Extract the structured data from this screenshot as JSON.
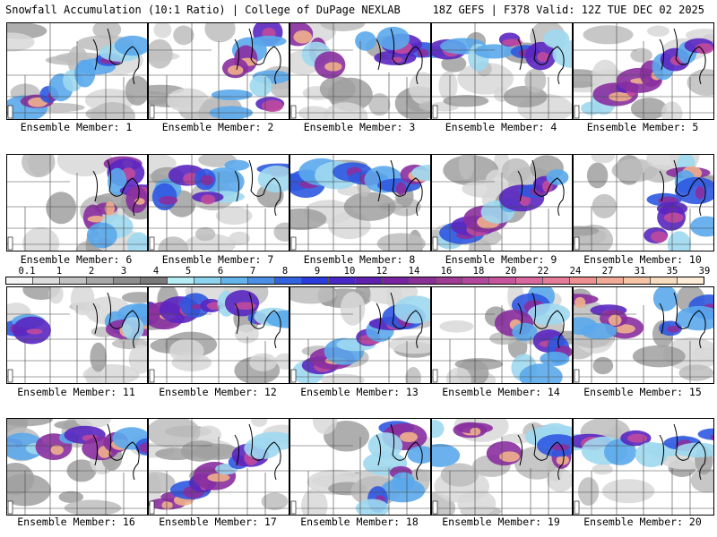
{
  "header": {
    "left": "Snowfall Accumulation (10:1 Ratio) | College of DuPage NEXLAB",
    "right": "18Z GEFS | F378 Valid: 12Z TUE DEC 02 2025"
  },
  "colorbar": {
    "labels": [
      "0.1",
      "1",
      "2",
      "3",
      "4",
      "5",
      "6",
      "7",
      "8",
      "9",
      "10",
      "12",
      "14",
      "16",
      "18",
      "20",
      "22",
      "24",
      "27",
      "31",
      "35",
      "39"
    ],
    "colors": [
      "#f4f4f4",
      "#dcdcdc",
      "#c2c2c2",
      "#a8a8a8",
      "#8e8e8e",
      "#7a7a7a",
      "#b6ecf4",
      "#8cd4ee",
      "#64b4ec",
      "#4a90e6",
      "#3264e2",
      "#2a3cdc",
      "#4a28c8",
      "#6020b0",
      "#7a24a4",
      "#8c3098",
      "#a03c94",
      "#b4489c",
      "#c8549e",
      "#d8689e",
      "#e47c98",
      "#ec9090",
      "#f0aa96",
      "#f4c4a4",
      "#f8dcc0",
      "#fcecd8"
    ]
  },
  "members": [
    {
      "label": "Ensemble Member: 1"
    },
    {
      "label": "Ensemble Member: 2"
    },
    {
      "label": "Ensemble Member: 3"
    },
    {
      "label": "Ensemble Member: 4"
    },
    {
      "label": "Ensemble Member: 5"
    },
    {
      "label": "Ensemble Member: 6"
    },
    {
      "label": "Ensemble Member: 7"
    },
    {
      "label": "Ensemble Member: 8"
    },
    {
      "label": "Ensemble Member: 9"
    },
    {
      "label": "Ensemble Member: 10"
    },
    {
      "label": "Ensemble Member: 11"
    },
    {
      "label": "Ensemble Member: 12"
    },
    {
      "label": "Ensemble Member: 13"
    },
    {
      "label": "Ensemble Member: 14"
    },
    {
      "label": "Ensemble Member: 15"
    },
    {
      "label": "Ensemble Member: 16"
    },
    {
      "label": "Ensemble Member: 17"
    },
    {
      "label": "Ensemble Member: 18"
    },
    {
      "label": "Ensemble Member: 19"
    },
    {
      "label": "Ensemble Member: 20"
    }
  ]
}
